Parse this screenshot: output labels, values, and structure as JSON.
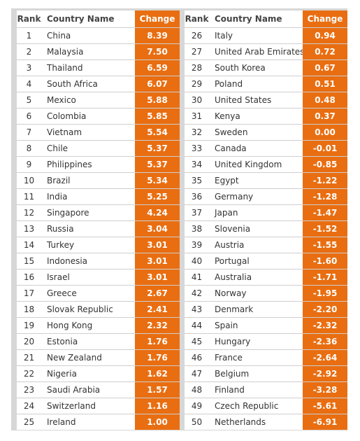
{
  "headers": {
    "rank": "Rank",
    "country": "Country Name",
    "change": "Change"
  },
  "accent_color": "#e96e11",
  "left_rows": [
    {
      "rank": "1",
      "country": "China",
      "change": "8.39"
    },
    {
      "rank": "2",
      "country": "Malaysia",
      "change": "7.50"
    },
    {
      "rank": "3",
      "country": "Thailand",
      "change": "6.59"
    },
    {
      "rank": "4",
      "country": "South Africa",
      "change": "6.07"
    },
    {
      "rank": "5",
      "country": "Mexico",
      "change": "5.88"
    },
    {
      "rank": "6",
      "country": "Colombia",
      "change": "5.85"
    },
    {
      "rank": "7",
      "country": "Vietnam",
      "change": "5.54"
    },
    {
      "rank": "8",
      "country": "Chile",
      "change": "5.37"
    },
    {
      "rank": "9",
      "country": "Philippines",
      "change": "5.37"
    },
    {
      "rank": "10",
      "country": "Brazil",
      "change": "5.34"
    },
    {
      "rank": "11",
      "country": "India",
      "change": "5.25"
    },
    {
      "rank": "12",
      "country": "Singapore",
      "change": "4.24"
    },
    {
      "rank": "13",
      "country": "Russia",
      "change": "3.04"
    },
    {
      "rank": "14",
      "country": "Turkey",
      "change": "3.01"
    },
    {
      "rank": "15",
      "country": "Indonesia",
      "change": "3.01"
    },
    {
      "rank": "16",
      "country": "Israel",
      "change": "3.01"
    },
    {
      "rank": "17",
      "country": "Greece",
      "change": "2.67"
    },
    {
      "rank": "18",
      "country": "Slovak Republic",
      "change": "2.41"
    },
    {
      "rank": "19",
      "country": "Hong Kong",
      "change": "2.32"
    },
    {
      "rank": "20",
      "country": "Estonia",
      "change": "1.76"
    },
    {
      "rank": "21",
      "country": "New Zealand",
      "change": "1.76"
    },
    {
      "rank": "22",
      "country": "Nigeria",
      "change": "1.62"
    },
    {
      "rank": "23",
      "country": "Saudi Arabia",
      "change": "1.57"
    },
    {
      "rank": "24",
      "country": "Switzerland",
      "change": "1.16"
    },
    {
      "rank": "25",
      "country": "Ireland",
      "change": "1.00"
    }
  ],
  "right_rows": [
    {
      "rank": "26",
      "country": "Italy",
      "change": "0.94"
    },
    {
      "rank": "27",
      "country": "United Arab Emirates",
      "change": "0.72"
    },
    {
      "rank": "28",
      "country": "South Korea",
      "change": "0.67"
    },
    {
      "rank": "29",
      "country": "Poland",
      "change": "0.51"
    },
    {
      "rank": "30",
      "country": "United States",
      "change": "0.48"
    },
    {
      "rank": "31",
      "country": "Kenya",
      "change": "0.37"
    },
    {
      "rank": "32",
      "country": "Sweden",
      "change": "0.00"
    },
    {
      "rank": "33",
      "country": "Canada",
      "change": "-0.01"
    },
    {
      "rank": "34",
      "country": "United Kingdom",
      "change": "-0.85"
    },
    {
      "rank": "35",
      "country": "Egypt",
      "change": "-1.22"
    },
    {
      "rank": "36",
      "country": "Germany",
      "change": "-1.28"
    },
    {
      "rank": "37",
      "country": "Japan",
      "change": "-1.47"
    },
    {
      "rank": "38",
      "country": "Slovenia",
      "change": "-1.52"
    },
    {
      "rank": "39",
      "country": "Austria",
      "change": "-1.55"
    },
    {
      "rank": "40",
      "country": "Portugal",
      "change": "-1.60"
    },
    {
      "rank": "41",
      "country": "Australia",
      "change": "-1.71"
    },
    {
      "rank": "42",
      "country": "Norway",
      "change": "-1.95"
    },
    {
      "rank": "43",
      "country": "Denmark",
      "change": "-2.20"
    },
    {
      "rank": "44",
      "country": "Spain",
      "change": "-2.32"
    },
    {
      "rank": "45",
      "country": "Hungary",
      "change": "-2.36"
    },
    {
      "rank": "46",
      "country": "France",
      "change": "-2.64"
    },
    {
      "rank": "47",
      "country": "Belgium",
      "change": "-2.92"
    },
    {
      "rank": "48",
      "country": "Finland",
      "change": "-3.28"
    },
    {
      "rank": "49",
      "country": "Czech Republic",
      "change": "-5.61"
    },
    {
      "rank": "50",
      "country": "Netherlands",
      "change": "-6.91"
    }
  ]
}
